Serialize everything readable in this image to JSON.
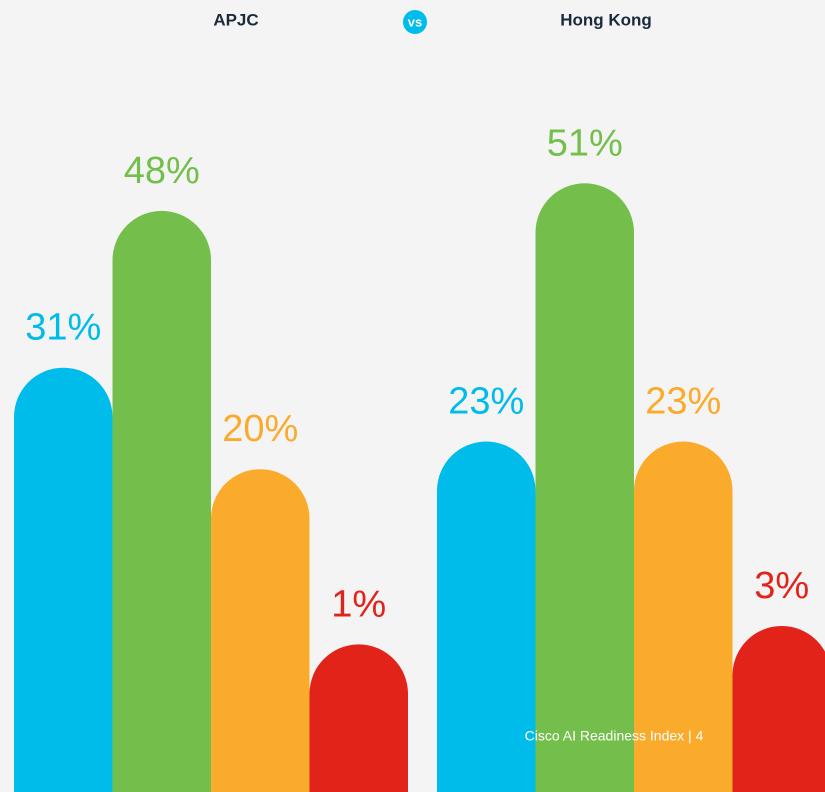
{
  "chart_data": {
    "type": "bar",
    "categories": [
      null,
      null,
      null,
      null
    ],
    "colors": [
      "#00bceb",
      "#74bf4b",
      "#fbab2c",
      "#e2231a"
    ],
    "series": [
      {
        "name": "APJC",
        "values": [
          31,
          48,
          20,
          1
        ],
        "value_labels": [
          "31%",
          "48%",
          "20%",
          "1%"
        ]
      },
      {
        "name": "Hong Kong",
        "values": [
          23,
          51,
          23,
          3
        ],
        "value_labels": [
          "23%",
          "51%",
          "23%",
          "3%"
        ]
      }
    ],
    "annotation": "vs",
    "ylim": [
      -15,
      70
    ]
  },
  "footer": "Cisco AI Readiness Index | 4"
}
